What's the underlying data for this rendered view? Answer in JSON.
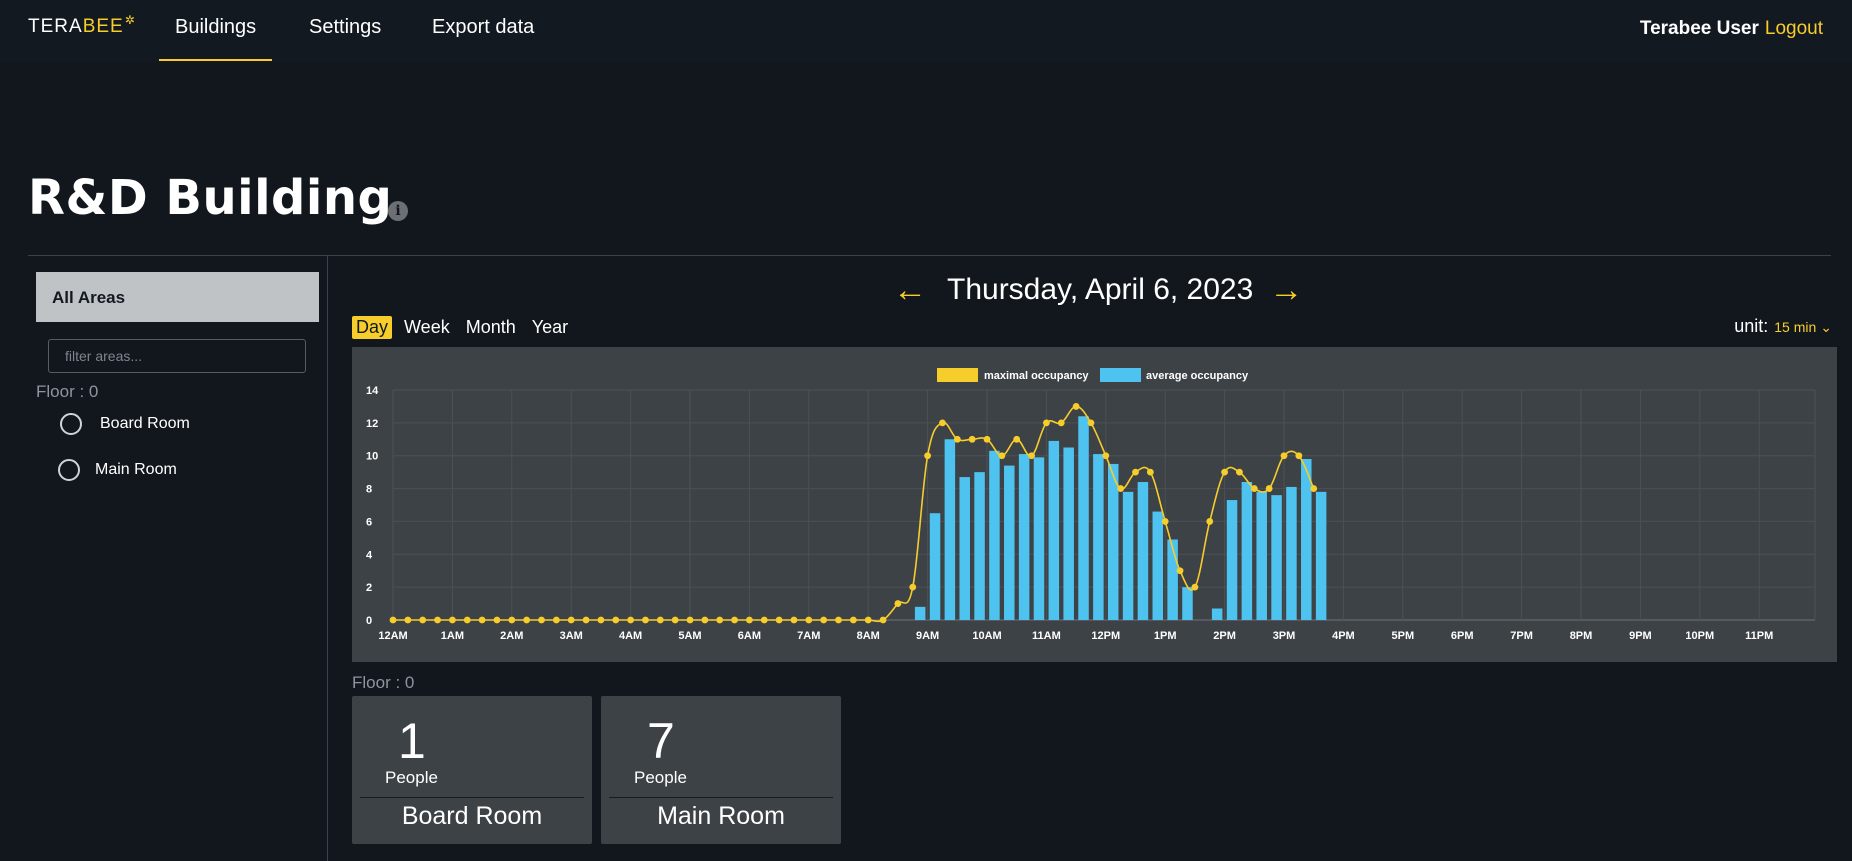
{
  "nav": {
    "logo_main": "TERA",
    "logo_accent": "BEE",
    "tabs": [
      {
        "label": "Buildings",
        "active": true
      },
      {
        "label": "Settings",
        "active": false
      },
      {
        "label": "Export data",
        "active": false
      }
    ],
    "user_name": "Terabee User",
    "logout_label": "Logout"
  },
  "page": {
    "title": "R&D Building",
    "info_icon": "info-icon"
  },
  "sidebar": {
    "all_areas_label": "All Areas",
    "filter_placeholder": "filter areas...",
    "floor_label": "Floor : 0",
    "rooms": [
      {
        "label": "Board Room"
      },
      {
        "label": "Main Room"
      }
    ]
  },
  "date_nav": {
    "prev_arrow": "←",
    "date": "Thursday, April 6, 2023",
    "next_arrow": "→"
  },
  "periods": [
    {
      "label": "Day",
      "active": true
    },
    {
      "label": "Week",
      "active": false
    },
    {
      "label": "Month",
      "active": false
    },
    {
      "label": "Year",
      "active": false
    }
  ],
  "unit": {
    "label": "unit:",
    "value": "15 min",
    "chevron_icon": "chevron-down-icon"
  },
  "colors": {
    "accent": "#f7cd2b",
    "bar": "#4fc3f0",
    "panel": "#3d4247",
    "background": "#11171d"
  },
  "chart_data": {
    "type": "bar",
    "legend": [
      "maximal occupancy",
      "average occupancy"
    ],
    "legend_position": "top-center",
    "grid": true,
    "ylim": [
      0,
      14
    ],
    "yticks": [
      0,
      2,
      4,
      6,
      8,
      10,
      12,
      14
    ],
    "xticks": [
      "12AM",
      "1AM",
      "2AM",
      "3AM",
      "4AM",
      "5AM",
      "6AM",
      "7AM",
      "8AM",
      "9AM",
      "10AM",
      "11AM",
      "12PM",
      "1PM",
      "2PM",
      "3PM",
      "4PM",
      "5PM",
      "6PM",
      "7PM",
      "8PM",
      "9PM",
      "10PM",
      "11PM"
    ],
    "interval_minutes": 15,
    "series": [
      {
        "name": "maximal occupancy",
        "kind": "line",
        "values": [
          0,
          0,
          0,
          0,
          0,
          0,
          0,
          0,
          0,
          0,
          0,
          0,
          0,
          0,
          0,
          0,
          0,
          0,
          0,
          0,
          0,
          0,
          0,
          0,
          0,
          0,
          0,
          0,
          0,
          0,
          0,
          0,
          0,
          0,
          1,
          2,
          10,
          12,
          11,
          11,
          11,
          10,
          11,
          10,
          12,
          12,
          13,
          12,
          10,
          8,
          9,
          9,
          6,
          3,
          2,
          6,
          9,
          9,
          8,
          8,
          10,
          10,
          8
        ]
      },
      {
        "name": "average occupancy",
        "kind": "bar",
        "values": [
          0,
          0,
          0,
          0,
          0,
          0,
          0,
          0,
          0,
          0,
          0,
          0,
          0,
          0,
          0,
          0,
          0,
          0,
          0,
          0,
          0,
          0,
          0,
          0,
          0,
          0,
          0,
          0,
          0,
          0,
          0,
          0,
          0,
          0,
          0,
          0.8,
          6.5,
          11,
          8.7,
          9,
          10.3,
          9.4,
          10.1,
          9.9,
          10.9,
          10.5,
          12.4,
          10.1,
          9.5,
          7.8,
          8.4,
          6.6,
          4.9,
          2,
          0,
          0.7,
          7.3,
          8.4,
          7.8,
          7.6,
          8.1,
          9.8,
          7.8
        ]
      }
    ]
  },
  "rooms_section": {
    "floor_label": "Floor : 0",
    "cards": [
      {
        "count": "1",
        "unit": "People",
        "name": "Board Room"
      },
      {
        "count": "7",
        "unit": "People",
        "name": "Main Room"
      }
    ]
  }
}
